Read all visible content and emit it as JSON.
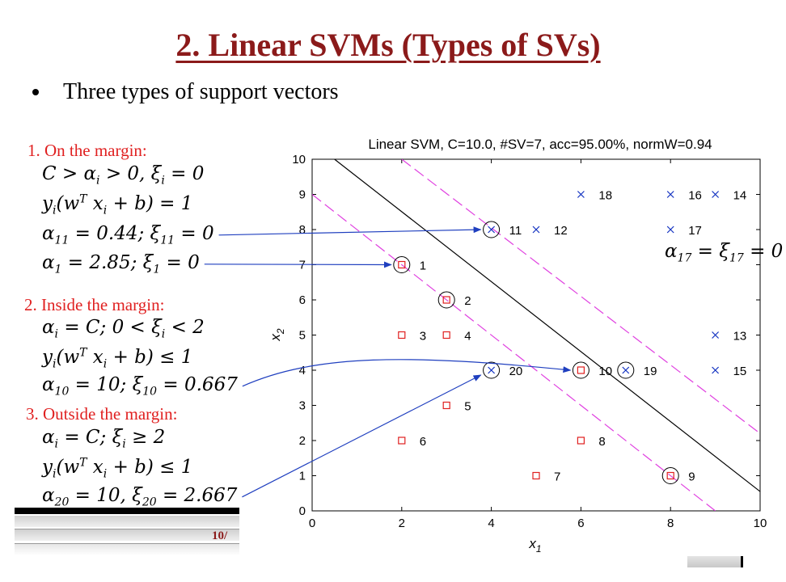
{
  "slide": {
    "title": "2. Linear SVMs (Types of SVs)",
    "bullet": "Three types of support vectors",
    "footer_page": "10/"
  },
  "sections": [
    {
      "heading": "1. On the margin:",
      "equations": [
        "C > α_i > 0, ξ_i = 0",
        "y_i(w^T x_i + b) = 1",
        "α_11 = 0.44; ξ_11 = 0",
        "α_1 = 2.85; ξ_1 = 0"
      ]
    },
    {
      "heading": "2. Inside the margin:",
      "equations": [
        "α_i = C; 0 < ξ_i < 2",
        "y_i(w^T x_i + b) ≤ 1",
        "α_10 = 10; ξ_10 = 0.667"
      ]
    },
    {
      "heading": "3. Outside the margin:",
      "equations": [
        "α_i = C; ξ_i ≥ 2",
        "y_i(w^T x_i + b) ≤ 1",
        "α_20 = 10, ξ_20 = 2.667"
      ]
    }
  ],
  "chart_annotation": "α_17 = ξ_17 = 0",
  "chart_data": {
    "type": "scatter",
    "title": "Linear SVM, C=10.0, #SV=7, acc=95.00%, normW=0.94",
    "xlabel": "x_1",
    "ylabel": "x_2",
    "xlim": [
      0,
      10
    ],
    "ylim": [
      0,
      10
    ],
    "xticks": [
      0,
      2,
      4,
      6,
      8,
      10
    ],
    "yticks": [
      0,
      1,
      2,
      3,
      4,
      5,
      6,
      7,
      8,
      9,
      10
    ],
    "grid": false,
    "series": [
      {
        "marker": "square",
        "color": "#E02020",
        "points": [
          {
            "id": "1",
            "x": 2,
            "y": 7,
            "sv": true
          },
          {
            "id": "2",
            "x": 3,
            "y": 6,
            "sv": true
          },
          {
            "id": "3",
            "x": 2,
            "y": 5,
            "sv": false
          },
          {
            "id": "4",
            "x": 3,
            "y": 5,
            "sv": false
          },
          {
            "id": "5",
            "x": 3,
            "y": 3,
            "sv": false
          },
          {
            "id": "6",
            "x": 2,
            "y": 2,
            "sv": false
          },
          {
            "id": "7",
            "x": 5,
            "y": 1,
            "sv": false
          },
          {
            "id": "8",
            "x": 6,
            "y": 2,
            "sv": false
          },
          {
            "id": "9",
            "x": 8,
            "y": 1,
            "sv": true
          },
          {
            "id": "10",
            "x": 6,
            "y": 4,
            "sv": true
          }
        ]
      },
      {
        "marker": "cross",
        "color": "#1030C0",
        "points": [
          {
            "id": "11",
            "x": 4,
            "y": 8,
            "sv": true
          },
          {
            "id": "12",
            "x": 5,
            "y": 8,
            "sv": false
          },
          {
            "id": "13",
            "x": 9,
            "y": 5,
            "sv": false
          },
          {
            "id": "14",
            "x": 9,
            "y": 9,
            "sv": false
          },
          {
            "id": "15",
            "x": 9,
            "y": 4,
            "sv": false
          },
          {
            "id": "16",
            "x": 8,
            "y": 9,
            "sv": false
          },
          {
            "id": "17",
            "x": 8,
            "y": 8,
            "sv": false
          },
          {
            "id": "18",
            "x": 6,
            "y": 9,
            "sv": false
          },
          {
            "id": "19",
            "x": 7,
            "y": 4,
            "sv": true
          },
          {
            "id": "20",
            "x": 4,
            "y": 4,
            "sv": true
          }
        ]
      }
    ],
    "lines": [
      {
        "name": "decision-boundary",
        "style": "solid",
        "color": "#000000",
        "points": [
          [
            0.5,
            10
          ],
          [
            10,
            0.55
          ]
        ]
      },
      {
        "name": "margin-upper",
        "style": "dashed",
        "color": "#E040E0",
        "points": [
          [
            2,
            10
          ],
          [
            10,
            2.2
          ]
        ]
      },
      {
        "name": "margin-lower",
        "style": "dashed",
        "color": "#E040E0",
        "points": [
          [
            0,
            9
          ],
          [
            9,
            0
          ]
        ]
      }
    ]
  },
  "arrows": [
    {
      "from_section": 0,
      "from_eq": 2,
      "to_point": "11"
    },
    {
      "from_section": 0,
      "from_eq": 3,
      "to_point": "1"
    },
    {
      "from_section": 1,
      "from_eq": 2,
      "to_point": "10"
    },
    {
      "from_section": 2,
      "from_eq": 2,
      "to_point": "20"
    }
  ],
  "colors": {
    "title": "#8B1A1A",
    "heading": "#E02020",
    "arrow": "#1F3FBF"
  }
}
